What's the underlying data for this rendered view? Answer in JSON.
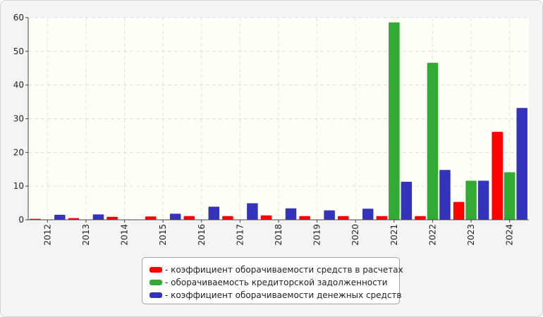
{
  "chart_data": {
    "type": "bar",
    "title": "",
    "xlabel": "",
    "ylabel": "",
    "ylim": [
      0,
      60
    ],
    "yticks": [
      0,
      10,
      20,
      30,
      40,
      50,
      60
    ],
    "grid": true,
    "legend_position": "bottom",
    "categories": [
      "2012",
      "2013",
      "2014",
      "2015",
      "2016",
      "2017",
      "2018",
      "2019",
      "2020",
      "2021",
      "2022",
      "2023",
      "2024"
    ],
    "series": [
      {
        "name": "- коэффициент оборачиваемости средств в расчетах",
        "color": "#ff0000",
        "values": [
          0.3,
          0.5,
          0.9,
          1.0,
          1.1,
          1.1,
          1.3,
          1.1,
          1.1,
          1.1,
          1.1,
          5.3,
          26.1
        ]
      },
      {
        "name": "- оборачиваемость кредиторской задолженности",
        "color": "#33aa33",
        "values": [
          0,
          0,
          0,
          0,
          0,
          0,
          0,
          0,
          0,
          58.6,
          46.6,
          11.6,
          14.1
        ]
      },
      {
        "name": "- коэффициент оборачиваемости денежных средств",
        "color": "#3333bb",
        "values": [
          1.5,
          1.6,
          0,
          1.8,
          3.9,
          4.9,
          3.4,
          2.8,
          3.3,
          11.3,
          14.8,
          11.6,
          33.2
        ]
      }
    ]
  }
}
